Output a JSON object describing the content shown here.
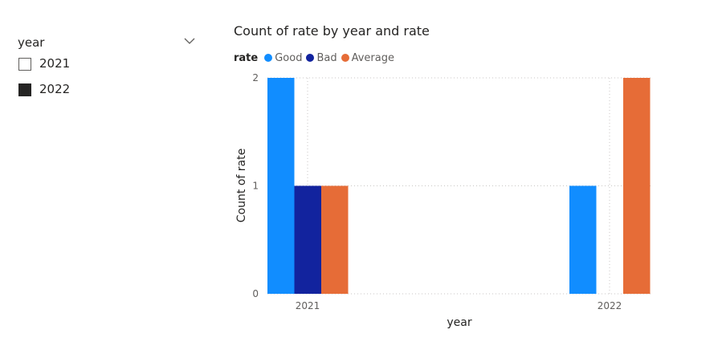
{
  "slicer": {
    "title": "year",
    "items": [
      {
        "label": "2021",
        "checked": false
      },
      {
        "label": "2022",
        "checked": true
      }
    ]
  },
  "chart_data": {
    "type": "bar",
    "title": "Count of rate by year and rate",
    "legend_title": "rate",
    "legend_position": "top-left",
    "xlabel": "year",
    "ylabel": "Count of rate",
    "categories": [
      "2021",
      "2022"
    ],
    "ylim": [
      0,
      2
    ],
    "yticks": [
      "0",
      "1",
      "2"
    ],
    "grid": true,
    "series": [
      {
        "name": "Good",
        "color": "#118DFF",
        "values": [
          2,
          1
        ]
      },
      {
        "name": "Bad",
        "color": "#12239E",
        "values": [
          1,
          0
        ]
      },
      {
        "name": "Average",
        "color": "#E66C37",
        "values": [
          1,
          2
        ]
      }
    ]
  }
}
